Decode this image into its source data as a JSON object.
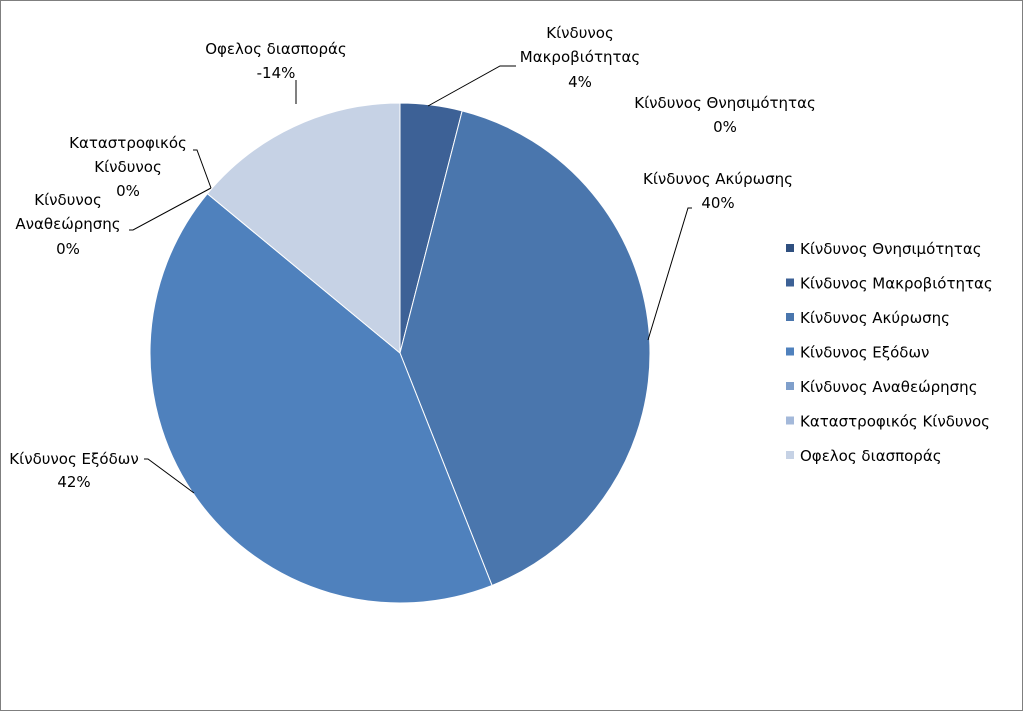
{
  "chart_data": {
    "type": "pie",
    "title": "",
    "legend_position": "right",
    "slices": [
      {
        "name": "Κίνδυνος Θνησιμότητας",
        "value": 0,
        "label": "0%",
        "color": "#2f4f7f"
      },
      {
        "name": "Κίνδυνος Μακροβιότητας",
        "value": 4,
        "label": "4%",
        "color": "#3d6196"
      },
      {
        "name": "Κίνδυνος Ακύρωσης",
        "value": 40,
        "label": "40%",
        "color": "#4a76ad"
      },
      {
        "name": "Κίνδυνος Εξόδων",
        "value": 42,
        "label": "42%",
        "color": "#4f81bd"
      },
      {
        "name": "Κίνδυνος Αναθεώρησης",
        "value": 0,
        "label": "0%",
        "color": "#7f9fcb"
      },
      {
        "name": "Καταστροφικός Κίνδυνος",
        "value": 0,
        "label": "0%",
        "color": "#a4b9da"
      },
      {
        "name": "Οφελος διασποράς",
        "value": 14,
        "label": "-14%",
        "color": "#c6d2e5"
      }
    ],
    "data_labels": {
      "mortality": [
        "Κίνδυνος Θνησιμότητας",
        "0%"
      ],
      "longevity": [
        "Κίνδυνος",
        "Μακροβιότητας",
        "4%"
      ],
      "lapse": [
        "Κίνδυνος Ακύρωσης",
        "40%"
      ],
      "expense": [
        "Κίνδυνος Εξόδων",
        "42%"
      ],
      "revision": [
        "Κίνδυνος",
        "Αναθεώρησης",
        "0%"
      ],
      "catastrophe": [
        "Καταστροφικός",
        "Κίνδυνος",
        "0%"
      ],
      "diversification": [
        "Οφελος διασποράς",
        "-14%"
      ]
    }
  }
}
